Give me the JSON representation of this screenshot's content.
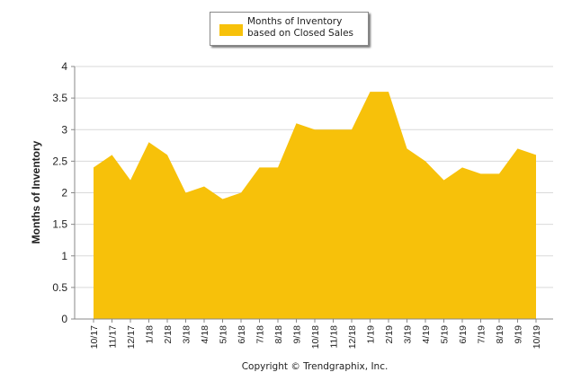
{
  "chart_data": {
    "type": "area",
    "categories": [
      "10/17",
      "11/17",
      "12/17",
      "1/18",
      "2/18",
      "3/18",
      "4/18",
      "5/18",
      "6/18",
      "7/18",
      "8/18",
      "9/18",
      "10/18",
      "11/18",
      "12/18",
      "1/19",
      "2/19",
      "3/19",
      "4/19",
      "5/19",
      "6/19",
      "7/19",
      "8/19",
      "9/19",
      "10/19"
    ],
    "series": [
      {
        "name": "Months of Inventory based on Closed Sales",
        "values": [
          2.4,
          2.6,
          2.2,
          2.8,
          2.6,
          2.0,
          2.1,
          1.9,
          2.0,
          2.4,
          2.4,
          3.1,
          3.0,
          3.0,
          3.0,
          3.6,
          3.6,
          2.7,
          2.5,
          2.2,
          2.4,
          2.3,
          2.3,
          2.7,
          2.6
        ]
      }
    ],
    "title": "",
    "xlabel": "",
    "ylabel": "Months of Inventory",
    "ylim": [
      0,
      4
    ],
    "yticks": [
      0,
      0.5,
      1,
      1.5,
      2,
      2.5,
      3,
      3.5,
      4
    ],
    "ytick_labels": [
      "0",
      "0.5",
      "1",
      "1.5",
      "2",
      "2.5",
      "3",
      "3.5",
      "4"
    ],
    "grid": true,
    "legend_position": "top-center",
    "fill_color": "#F7C10A"
  },
  "legend": {
    "label": "Months of Inventory based on Closed Sales"
  },
  "footer": {
    "copyright": "Copyright © Trendgraphix, Inc."
  }
}
